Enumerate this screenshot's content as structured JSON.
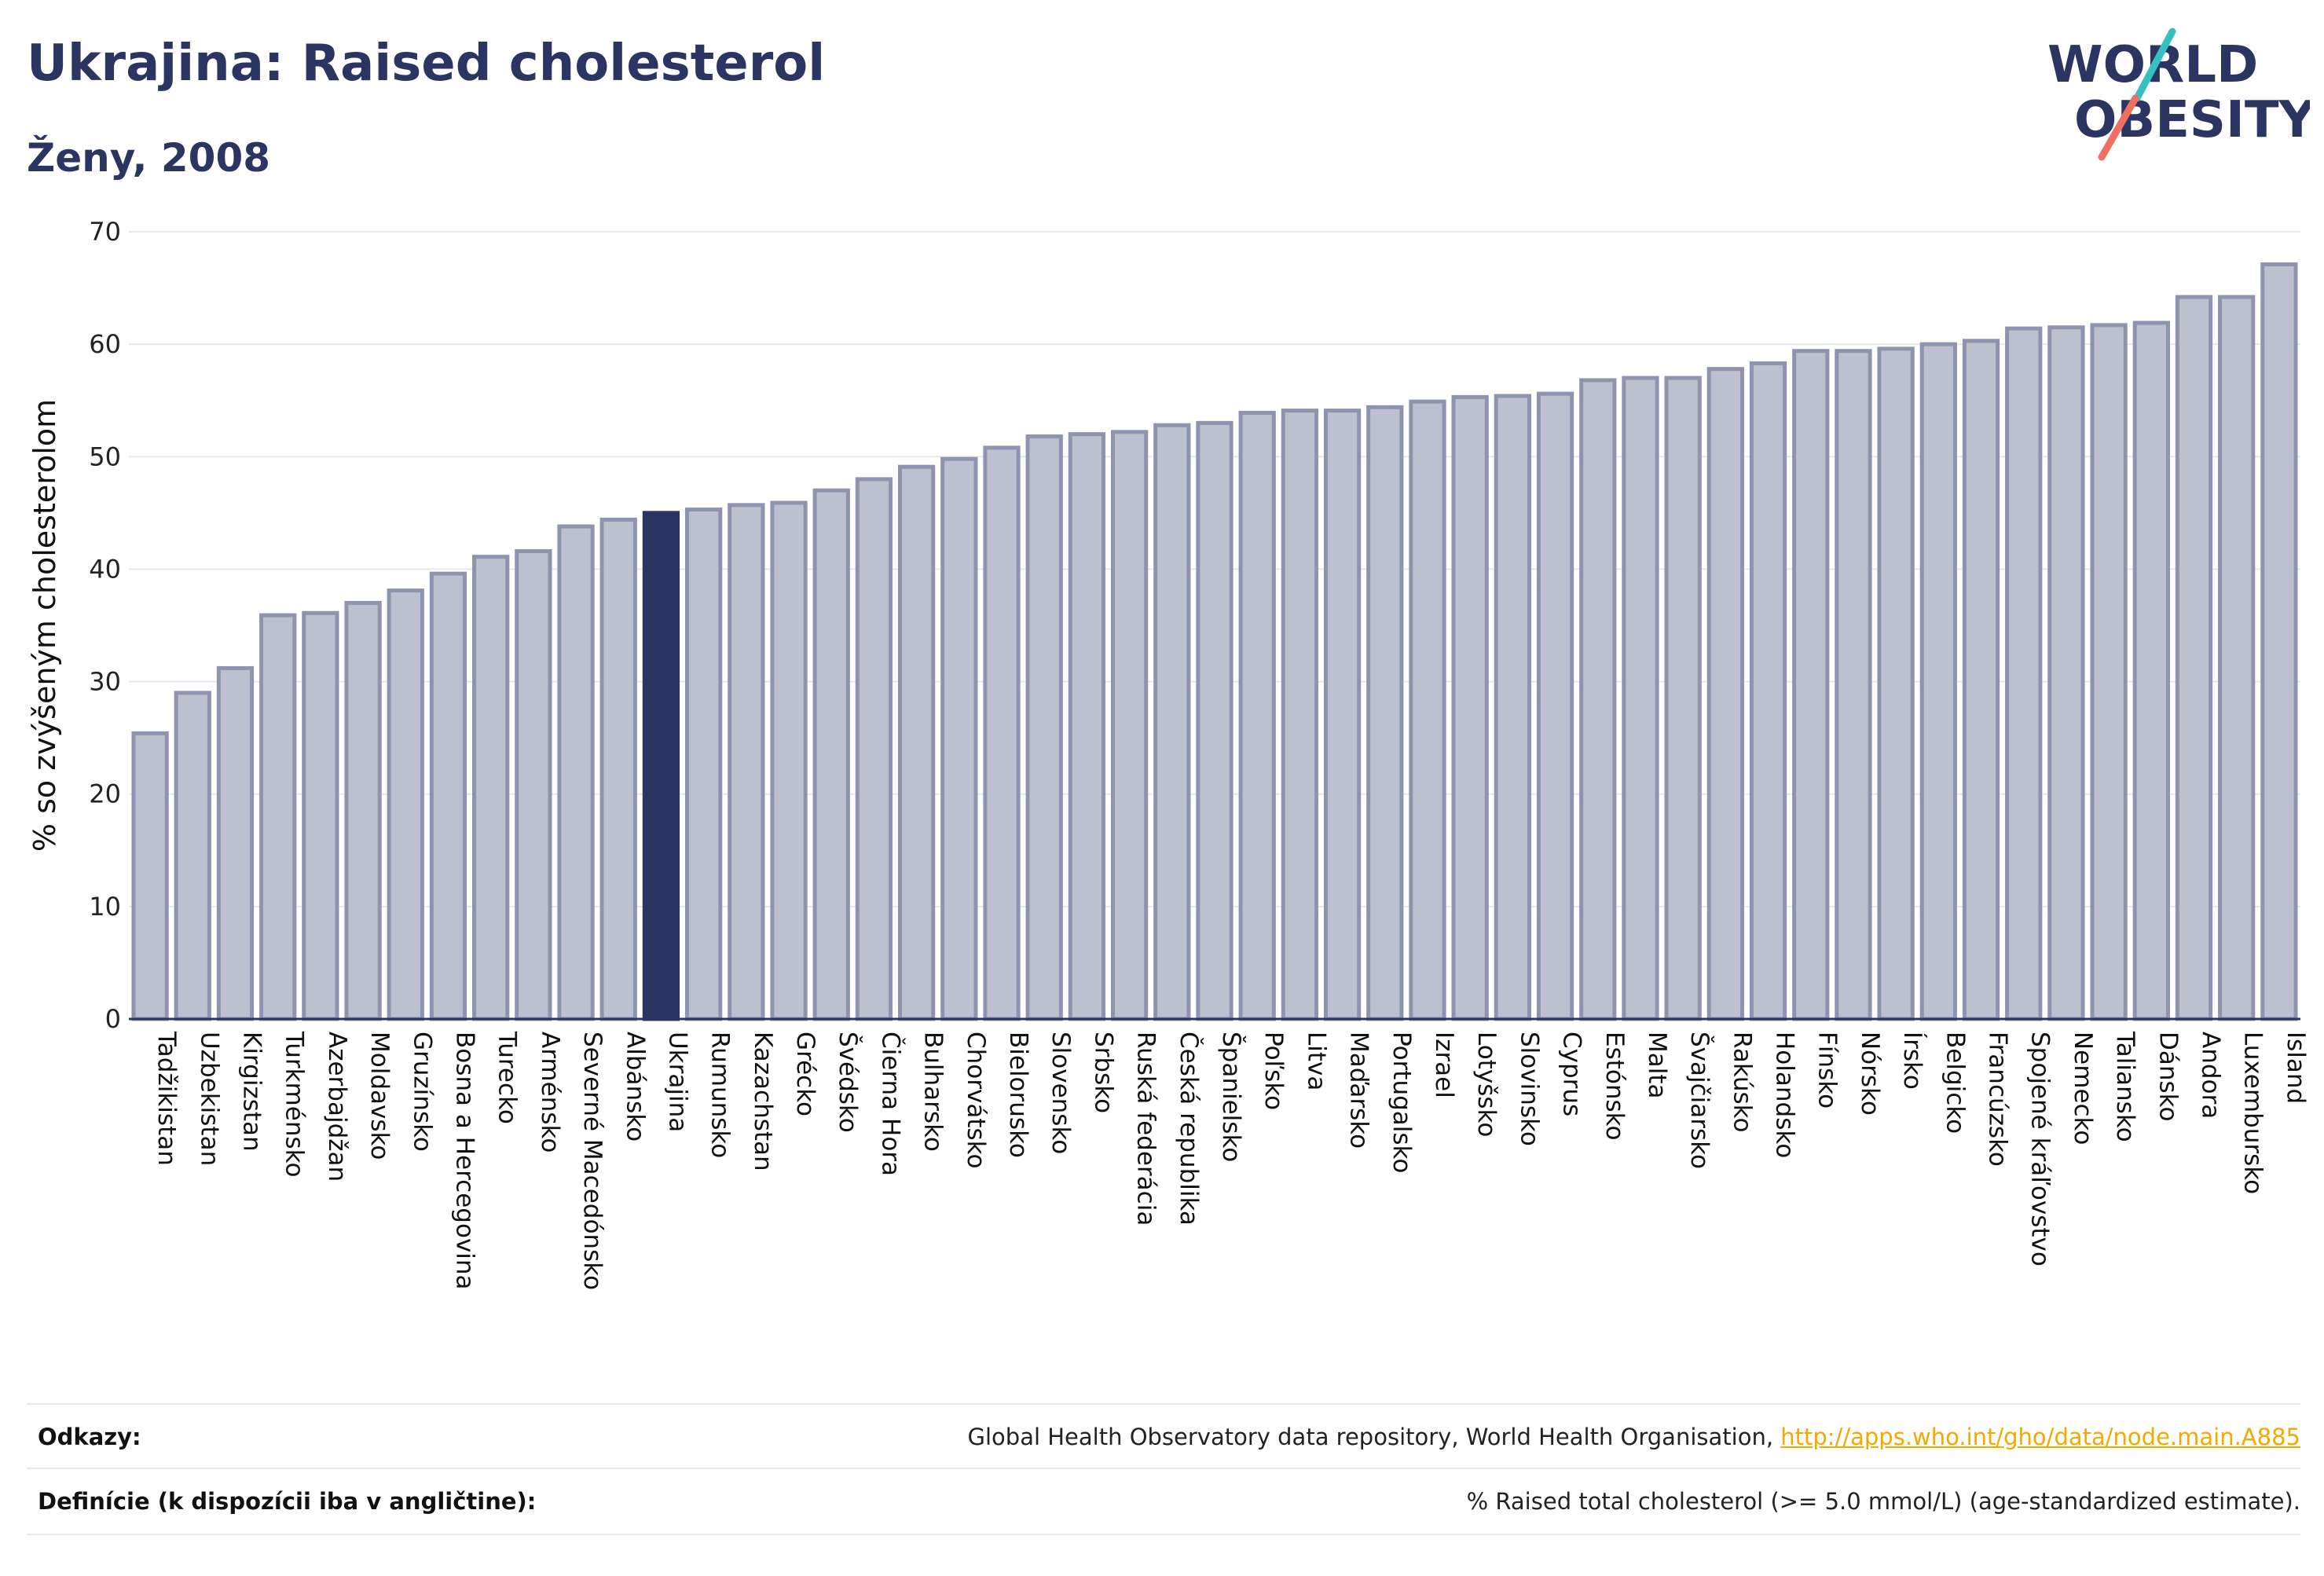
{
  "header": {
    "title": "Ukrajina: Raised cholesterol",
    "subtitle": "Ženy, 2008"
  },
  "logo": {
    "line1": "WORLD",
    "line2": "OBESITY"
  },
  "colors": {
    "bar_fill": "#bcc0cf",
    "bar_stroke": "#8e94ad",
    "highlight": "#2b3562",
    "grid": "#e6e8f0",
    "axis": "#2b3562",
    "logo_teal": "#37c0c0",
    "logo_coral": "#f07060",
    "link": "#f2a900"
  },
  "chart_data": {
    "type": "bar",
    "ylabel": "% so zvýšeným cholesterolom",
    "ylim": [
      0,
      70
    ],
    "yticks": [
      0,
      10,
      20,
      30,
      40,
      50,
      60,
      70
    ],
    "grid": true,
    "highlight": "Ukrajina",
    "categories": [
      "Tadžikistan",
      "Uzbekistan",
      "Kirgizstan",
      "Turkménsko",
      "Azerbajdžan",
      "Moldavsko",
      "Gruzínsko",
      "Bosna a Hercegovina",
      "Turecko",
      "Arménsko",
      "Severné Macedónsko",
      "Albánsko",
      "Ukrajina",
      "Rumunsko",
      "Kazachstan",
      "Grécko",
      "Švédsko",
      "Čierna Hora",
      "Bulharsko",
      "Chorvátsko",
      "Bielorusko",
      "Slovensko",
      "Srbsko",
      "Ruská federácia",
      "Česká republika",
      "Španielsko",
      "Poľsko",
      "Litva",
      "Maďarsko",
      "Portugalsko",
      "Izrael",
      "Lotyšsko",
      "Slovinsko",
      "Cyprus",
      "Estónsko",
      "Malta",
      "Švajčiarsko",
      "Rakúsko",
      "Holandsko",
      "Fínsko",
      "Nórsko",
      "Írsko",
      "Belgicko",
      "Francúzsko",
      "Spojené kráľovstvo",
      "Nemecko",
      "Taliansko",
      "Dánsko",
      "Andora",
      "Luxembursko",
      "Island"
    ],
    "values": [
      25.4,
      29.0,
      31.2,
      35.9,
      36.1,
      37.0,
      38.1,
      39.6,
      41.1,
      41.6,
      43.8,
      44.4,
      45.0,
      45.3,
      45.7,
      45.9,
      47.0,
      48.0,
      49.1,
      49.8,
      50.8,
      51.8,
      52.0,
      52.2,
      52.8,
      53.0,
      53.9,
      54.1,
      54.1,
      54.4,
      54.9,
      55.3,
      55.4,
      55.6,
      56.8,
      57.0,
      57.0,
      57.8,
      58.3,
      59.4,
      59.4,
      59.6,
      60.0,
      60.3,
      61.4,
      61.5,
      61.7,
      61.9,
      64.2,
      64.2,
      67.1
    ]
  },
  "footer": {
    "references_label": "Odkazy:",
    "references_text": "Global Health Observatory data repository, World Health Organisation, ",
    "references_link": "http://apps.who.int/gho/data/node.main.A885",
    "definitions_label": "Definície (k dispozícii iba v angličtine):",
    "definitions_text": "% Raised total cholesterol (>= 5.0 mmol/L) (age-standardized estimate)."
  }
}
